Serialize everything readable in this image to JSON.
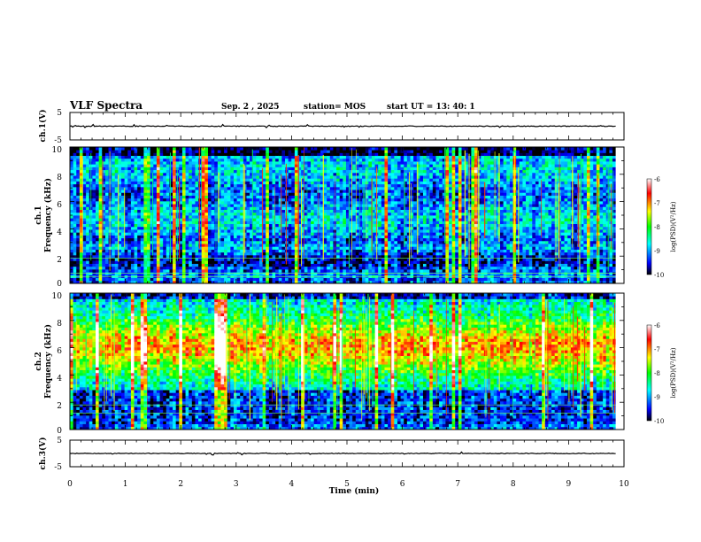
{
  "header": {
    "title": "VLF Spectra",
    "date": "Sep. 2  , 2025",
    "station": "station= MOS",
    "start_ut": "start  UT  =    13: 40: 1"
  },
  "chart_data": [
    {
      "type": "line",
      "panel": "ch1-waveform",
      "ylabel": "ch.1(V)",
      "ylim": [
        -5,
        5
      ],
      "yticks": [
        "5",
        "-5"
      ],
      "xlim": [
        0,
        10
      ],
      "trace_color": "#000000"
    },
    {
      "type": "heatmap",
      "panel": "ch1-spectrogram",
      "ylabel": [
        "ch.1",
        "Frequency  (kHz)"
      ],
      "ylim": [
        0,
        10
      ],
      "yticks": [
        "0",
        "2",
        "4",
        "6",
        "8",
        "10"
      ],
      "xlim": [
        0,
        10
      ],
      "data_end_min": 9.85,
      "colorbar": {
        "label": "log(PSD)(V²/Hz)",
        "range": [
          -10,
          -6
        ],
        "ticks": [
          "-6",
          "-7",
          "-8",
          "-9",
          "-10"
        ],
        "colors": [
          "#000000",
          "#0000ff",
          "#00ffff",
          "#00ff00",
          "#ffff00",
          "#ff0000",
          "#ffffff"
        ]
      },
      "description_bands": {
        "noise_floor_kHz": [
          0,
          10
        ],
        "hum_lines_kHz": [
          0.5,
          0.75,
          1.85
        ]
      }
    },
    {
      "type": "heatmap",
      "panel": "ch2-spectrogram",
      "ylabel": [
        "ch.2",
        "Frequency  (kHz)"
      ],
      "ylim": [
        0,
        10
      ],
      "yticks": [
        "0",
        "2",
        "4",
        "6",
        "8",
        "10"
      ],
      "xlim": [
        0,
        10
      ],
      "data_end_min": 9.85,
      "colorbar": {
        "label": "log(PSD)(V²/Hz)",
        "range": [
          -10,
          -6
        ],
        "ticks": [
          "-6",
          "-7",
          "-8",
          "-9",
          "-10"
        ],
        "colors": [
          "#000000",
          "#0000ff",
          "#00ffff",
          "#00ff00",
          "#ffff00",
          "#ff0000",
          "#ffffff"
        ]
      },
      "description_bands": {
        "hum_lines_kHz": [
          1.2,
          1.8
        ]
      }
    },
    {
      "type": "line",
      "panel": "ch3-waveform",
      "ylabel": "ch.3(V)",
      "ylim": [
        -5,
        5
      ],
      "yticks": [
        "5",
        "-5"
      ],
      "xlim": [
        0,
        10
      ],
      "xticks": [
        "0",
        "1",
        "2",
        "3",
        "4",
        "5",
        "6",
        "7",
        "8",
        "9",
        "10"
      ],
      "xlabel": "Time  (min)",
      "trace_color": "#000000"
    }
  ]
}
